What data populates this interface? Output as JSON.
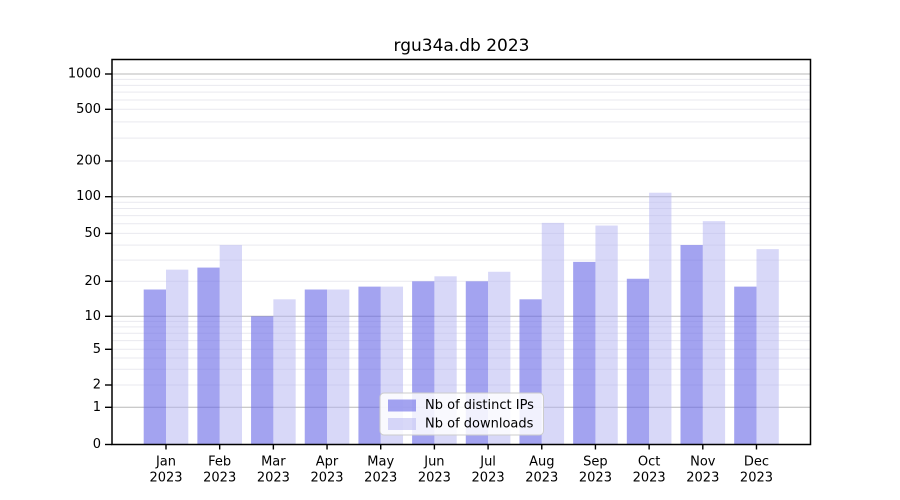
{
  "chart_data": {
    "type": "bar",
    "title": "rgu34a.db 2023",
    "categories": [
      "Jan",
      "Feb",
      "Mar",
      "Apr",
      "May",
      "Jun",
      "Jul",
      "Aug",
      "Sep",
      "Oct",
      "Nov",
      "Dec"
    ],
    "year_label": "2023",
    "series": [
      {
        "name": "Nb of distinct IPs",
        "color": "#a3a3f0",
        "fill": "rgba(106,106,231,0.62)",
        "values": [
          17,
          26,
          10,
          17,
          18,
          20,
          20,
          14,
          29,
          21,
          40,
          18
        ]
      },
      {
        "name": "Nb of downloads",
        "color": "#d9d9f8",
        "fill": "rgba(180,180,242,0.52)",
        "values": [
          25,
          40,
          14,
          17,
          18,
          22,
          24,
          61,
          58,
          108,
          63,
          37
        ]
      }
    ],
    "y_ticks": [
      0,
      1,
      2,
      5,
      10,
      20,
      50,
      100,
      200,
      500,
      1000
    ],
    "y_scale": "symlog",
    "ylim": [
      0,
      1200
    ],
    "grid": true,
    "xlabel": "",
    "ylabel": "",
    "legend_position": "lower-center",
    "colors": {
      "major_grid": "#b8b8b8",
      "minor_grid": "#e9e9ef",
      "spine": "#000000",
      "legend_border": "#cccccc",
      "legend_bg": "rgba(255,255,255,0.85)"
    }
  }
}
